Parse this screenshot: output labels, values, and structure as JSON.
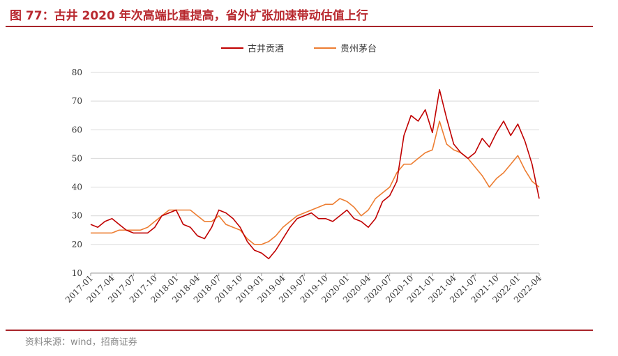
{
  "header": {
    "title": "图 77：古井 2020 年次高端比重提高，省外扩张加速带动估值上行"
  },
  "footer": {
    "source": "资料来源：wind，招商证券"
  },
  "chart_data": {
    "type": "line",
    "title": "",
    "xlabel": "",
    "ylabel": "",
    "ylim": [
      10,
      80
    ],
    "yticks": [
      10,
      20,
      30,
      40,
      50,
      60,
      70,
      80
    ],
    "grid": "horizontal",
    "legend_position": "top-center",
    "x_tick_labels": [
      "2017-01",
      "2017-04",
      "2017-07",
      "2017-10",
      "2018-01",
      "2018-04",
      "2018-07",
      "2018-10",
      "2019-01",
      "2019-04",
      "2019-07",
      "2019-10",
      "2020-01",
      "2020-04",
      "2020-07",
      "2020-10",
      "2021-01",
      "2021-04",
      "2021-07",
      "2021-10",
      "2022-01",
      "2022-04"
    ],
    "x": [
      "2017-01",
      "2017-02",
      "2017-03",
      "2017-04",
      "2017-05",
      "2017-06",
      "2017-07",
      "2017-08",
      "2017-09",
      "2017-10",
      "2017-11",
      "2017-12",
      "2018-01",
      "2018-02",
      "2018-03",
      "2018-04",
      "2018-05",
      "2018-06",
      "2018-07",
      "2018-08",
      "2018-09",
      "2018-10",
      "2018-11",
      "2018-12",
      "2019-01",
      "2019-02",
      "2019-03",
      "2019-04",
      "2019-05",
      "2019-06",
      "2019-07",
      "2019-08",
      "2019-09",
      "2019-10",
      "2019-11",
      "2019-12",
      "2020-01",
      "2020-02",
      "2020-03",
      "2020-04",
      "2020-05",
      "2020-06",
      "2020-07",
      "2020-08",
      "2020-09",
      "2020-10",
      "2020-11",
      "2020-12",
      "2021-01",
      "2021-02",
      "2021-03",
      "2021-04",
      "2021-05",
      "2021-06",
      "2021-07",
      "2021-08",
      "2021-09",
      "2021-10",
      "2021-11",
      "2021-12",
      "2022-01",
      "2022-02",
      "2022-03",
      "2022-04"
    ],
    "series": [
      {
        "name": "古井贡酒",
        "color": "#c00000",
        "values": [
          27,
          26,
          28,
          29,
          27,
          25,
          24,
          24,
          24,
          26,
          30,
          31,
          32,
          27,
          26,
          23,
          22,
          26,
          32,
          31,
          29,
          26,
          21,
          18,
          17,
          15,
          18,
          22,
          26,
          29,
          30,
          31,
          29,
          29,
          28,
          30,
          32,
          29,
          28,
          26,
          29,
          35,
          37,
          42,
          58,
          65,
          63,
          67,
          59,
          74,
          64,
          55,
          52,
          50,
          52,
          57,
          54,
          59,
          63,
          58,
          62,
          56,
          48,
          36
        ],
        "line_width": 1.6
      },
      {
        "name": "贵州茅台",
        "color": "#ed7d31",
        "values": [
          24,
          24,
          24,
          24,
          25,
          25,
          25,
          25,
          26,
          28,
          30,
          32,
          32,
          32,
          32,
          30,
          28,
          28,
          30,
          27,
          26,
          25,
          22,
          20,
          20,
          21,
          23,
          26,
          28,
          30,
          31,
          32,
          33,
          34,
          34,
          36,
          35,
          33,
          30,
          32,
          36,
          38,
          40,
          45,
          48,
          48,
          50,
          52,
          53,
          63,
          55,
          53,
          52,
          50,
          47,
          44,
          40,
          43,
          45,
          48,
          51,
          46,
          42,
          40
        ],
        "line_width": 1.6
      }
    ]
  }
}
